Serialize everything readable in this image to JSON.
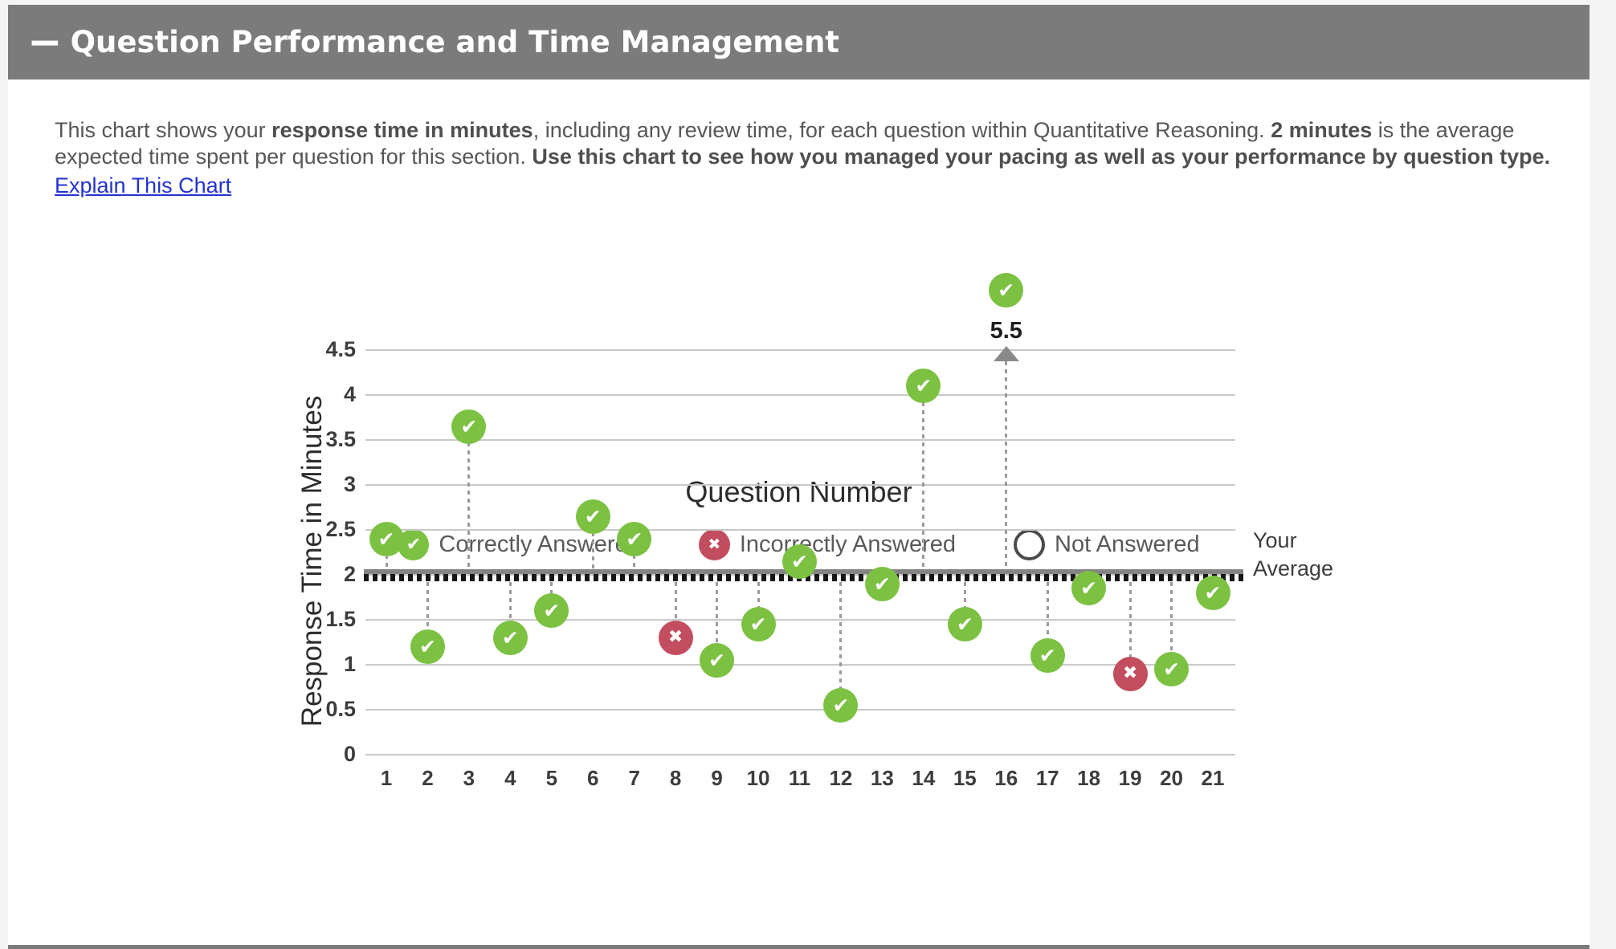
{
  "header": {
    "collapse_icon": "−",
    "title": "Question Performance and Time Management"
  },
  "description": {
    "segments": [
      {
        "text": "This chart shows your ",
        "bold": false
      },
      {
        "text": "response time in minutes",
        "bold": true
      },
      {
        "text": ", including any review time, for each question within Quantitative Reasoning. ",
        "bold": false
      },
      {
        "text": "2 minutes",
        "bold": true
      },
      {
        "text": " is the average expected time spent per question for this section. ",
        "bold": false
      },
      {
        "text": "Use this chart to see how you managed your pacing as well as your performance by question type.",
        "bold": true
      }
    ],
    "link_label": "Explain This Chart"
  },
  "chart_data": {
    "type": "scatter",
    "xlabel": "Question Number",
    "ylabel": "Response Time in Minutes",
    "ylim": [
      0,
      4.5
    ],
    "y_ticks": [
      "0",
      "0.5",
      "1",
      "1.5",
      "2",
      "2.5",
      "3",
      "3.5",
      "4",
      "4.5"
    ],
    "grid": true,
    "average_line": {
      "value": 2,
      "label": "Your Average"
    },
    "offscale_point": {
      "question": 16,
      "label": "5.5"
    },
    "points": [
      {
        "q": 1,
        "minutes": 2.4,
        "status": "correct"
      },
      {
        "q": 2,
        "minutes": 1.2,
        "status": "correct"
      },
      {
        "q": 3,
        "minutes": 3.65,
        "status": "correct"
      },
      {
        "q": 4,
        "minutes": 1.3,
        "status": "correct"
      },
      {
        "q": 5,
        "minutes": 1.6,
        "status": "correct"
      },
      {
        "q": 6,
        "minutes": 2.65,
        "status": "correct"
      },
      {
        "q": 7,
        "minutes": 2.4,
        "status": "correct"
      },
      {
        "q": 8,
        "minutes": 1.3,
        "status": "incorrect"
      },
      {
        "q": 9,
        "minutes": 1.05,
        "status": "correct"
      },
      {
        "q": 10,
        "minutes": 1.45,
        "status": "correct"
      },
      {
        "q": 11,
        "minutes": 2.15,
        "status": "correct"
      },
      {
        "q": 12,
        "minutes": 0.55,
        "status": "correct"
      },
      {
        "q": 13,
        "minutes": 1.9,
        "status": "correct"
      },
      {
        "q": 14,
        "minutes": 4.1,
        "status": "correct"
      },
      {
        "q": 15,
        "minutes": 1.45,
        "status": "correct"
      },
      {
        "q": 16,
        "minutes": 5.5,
        "status": "correct",
        "offscale": true
      },
      {
        "q": 17,
        "minutes": 1.1,
        "status": "correct"
      },
      {
        "q": 18,
        "minutes": 1.85,
        "status": "correct"
      },
      {
        "q": 19,
        "minutes": 0.9,
        "status": "incorrect"
      },
      {
        "q": 20,
        "minutes": 0.95,
        "status": "correct"
      },
      {
        "q": 21,
        "minutes": 1.8,
        "status": "correct"
      }
    ],
    "legend": [
      {
        "label": "Correctly Answered",
        "type": "correct",
        "icon": "check-circle-icon"
      },
      {
        "label": "Incorrectly Answered",
        "type": "incorrect",
        "icon": "x-circle-icon"
      },
      {
        "label": "Not Answered",
        "type": "none",
        "icon": "empty-circle-icon"
      }
    ]
  },
  "icons": {
    "check": "✔",
    "x": "✖"
  },
  "colors": {
    "correct_green": "#7cc142",
    "incorrect_red": "#c24d5e",
    "header_gray": "#7b7b7b",
    "average_line_gray": "#848484",
    "average_dots_black": "#161616",
    "gridline_gray": "#c9c9c9",
    "link_blue": "#2433d0"
  }
}
